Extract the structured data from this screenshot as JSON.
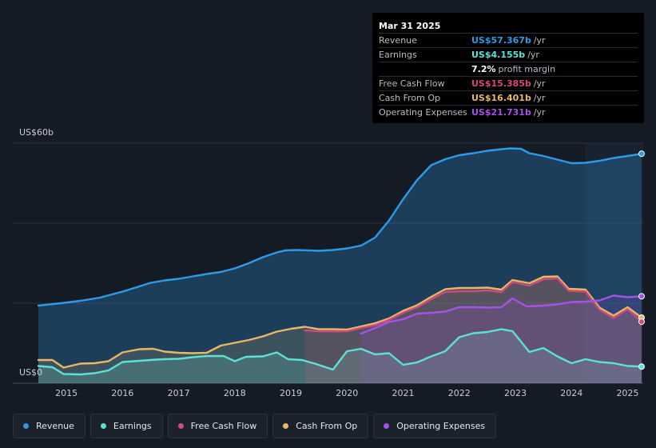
{
  "chart_data": {
    "type": "area",
    "title": "",
    "xlabel": "",
    "ylabel": "",
    "ylim": [
      0,
      60
    ],
    "xlim": [
      2014.5,
      2025.25
    ],
    "y_tick_labels": {
      "top": "US$60b",
      "bottom": "US$0"
    },
    "x_ticks": [
      2015,
      2016,
      2017,
      2018,
      2019,
      2020,
      2021,
      2022,
      2023,
      2024,
      2025
    ],
    "forecast_start": 2024.25,
    "series": [
      {
        "name": "Revenue",
        "color": "#2d9be8",
        "points": [
          [
            2014.5,
            19.4
          ],
          [
            2014.9,
            20.0
          ],
          [
            2015.25,
            20.6
          ],
          [
            2015.6,
            21.4
          ],
          [
            2016.0,
            22.9
          ],
          [
            2016.3,
            24.2
          ],
          [
            2016.5,
            25.1
          ],
          [
            2016.75,
            25.7
          ],
          [
            2017.0,
            26.1
          ],
          [
            2017.25,
            26.7
          ],
          [
            2017.5,
            27.3
          ],
          [
            2017.75,
            27.8
          ],
          [
            2018.0,
            28.7
          ],
          [
            2018.25,
            30.0
          ],
          [
            2018.5,
            31.5
          ],
          [
            2018.75,
            32.7
          ],
          [
            2018.9,
            33.2
          ],
          [
            2019.1,
            33.3
          ],
          [
            2019.5,
            33.1
          ],
          [
            2019.75,
            33.3
          ],
          [
            2020.0,
            33.7
          ],
          [
            2020.25,
            34.4
          ],
          [
            2020.5,
            36.4
          ],
          [
            2020.75,
            40.7
          ],
          [
            2021.0,
            46.0
          ],
          [
            2021.25,
            50.8
          ],
          [
            2021.5,
            54.5
          ],
          [
            2021.75,
            56.0
          ],
          [
            2022.0,
            57.0
          ],
          [
            2022.25,
            57.5
          ],
          [
            2022.5,
            58.1
          ],
          [
            2022.75,
            58.5
          ],
          [
            2022.9,
            58.7
          ],
          [
            2023.1,
            58.6
          ],
          [
            2023.25,
            57.5
          ],
          [
            2023.5,
            56.8
          ],
          [
            2023.75,
            55.9
          ],
          [
            2024.0,
            55.0
          ],
          [
            2024.25,
            55.1
          ],
          [
            2024.5,
            55.6
          ],
          [
            2024.75,
            56.3
          ],
          [
            2025.0,
            56.8
          ],
          [
            2025.25,
            57.367
          ]
        ]
      },
      {
        "name": "Earnings",
        "color": "#5ce1d6",
        "points": [
          [
            2014.5,
            4.3
          ],
          [
            2014.75,
            4.0
          ],
          [
            2014.95,
            2.3
          ],
          [
            2015.25,
            2.2
          ],
          [
            2015.5,
            2.5
          ],
          [
            2015.75,
            3.2
          ],
          [
            2016.0,
            5.3
          ],
          [
            2016.3,
            5.6
          ],
          [
            2016.6,
            5.9
          ],
          [
            2016.75,
            6.0
          ],
          [
            2017.0,
            6.1
          ],
          [
            2017.25,
            6.5
          ],
          [
            2017.5,
            6.8
          ],
          [
            2017.8,
            6.8
          ],
          [
            2018.0,
            5.5
          ],
          [
            2018.2,
            6.6
          ],
          [
            2018.5,
            6.7
          ],
          [
            2018.75,
            7.7
          ],
          [
            2018.95,
            6.0
          ],
          [
            2019.2,
            5.8
          ],
          [
            2019.45,
            4.8
          ],
          [
            2019.75,
            3.4
          ],
          [
            2020.0,
            8.0
          ],
          [
            2020.25,
            8.6
          ],
          [
            2020.5,
            7.2
          ],
          [
            2020.75,
            7.5
          ],
          [
            2021.0,
            4.6
          ],
          [
            2021.25,
            5.2
          ],
          [
            2021.5,
            6.7
          ],
          [
            2021.75,
            8.0
          ],
          [
            2022.0,
            11.5
          ],
          [
            2022.25,
            12.5
          ],
          [
            2022.5,
            12.8
          ],
          [
            2022.75,
            13.5
          ],
          [
            2022.95,
            13.0
          ],
          [
            2023.25,
            7.8
          ],
          [
            2023.5,
            8.8
          ],
          [
            2023.75,
            6.7
          ],
          [
            2024.0,
            5.0
          ],
          [
            2024.25,
            6.0
          ],
          [
            2024.5,
            5.3
          ],
          [
            2024.75,
            5.0
          ],
          [
            2025.0,
            4.3
          ],
          [
            2025.25,
            4.155
          ]
        ]
      },
      {
        "name": "Free Cash Flow",
        "color": "#d04a7c",
        "points": [
          [
            2019.25,
            13.2
          ],
          [
            2019.5,
            13.0
          ],
          [
            2019.75,
            13.0
          ],
          [
            2020.0,
            13.0
          ],
          [
            2020.25,
            13.8
          ],
          [
            2020.5,
            14.5
          ],
          [
            2020.75,
            15.8
          ],
          [
            2021.0,
            17.6
          ],
          [
            2021.25,
            19.0
          ],
          [
            2021.5,
            21.0
          ],
          [
            2021.75,
            22.8
          ],
          [
            2022.0,
            23.0
          ],
          [
            2022.25,
            23.0
          ],
          [
            2022.5,
            23.2
          ],
          [
            2022.75,
            22.8
          ],
          [
            2022.95,
            25.3
          ],
          [
            2023.25,
            24.4
          ],
          [
            2023.5,
            26.0
          ],
          [
            2023.75,
            26.2
          ],
          [
            2023.95,
            23.1
          ],
          [
            2024.25,
            22.9
          ],
          [
            2024.5,
            18.4
          ],
          [
            2024.75,
            16.3
          ],
          [
            2025.0,
            18.5
          ],
          [
            2025.25,
            15.385
          ]
        ]
      },
      {
        "name": "Cash From Op",
        "color": "#e8b866",
        "points": [
          [
            2014.5,
            5.8
          ],
          [
            2014.75,
            5.8
          ],
          [
            2014.95,
            3.9
          ],
          [
            2015.25,
            4.9
          ],
          [
            2015.5,
            5.0
          ],
          [
            2015.75,
            5.5
          ],
          [
            2016.0,
            7.7
          ],
          [
            2016.3,
            8.5
          ],
          [
            2016.55,
            8.6
          ],
          [
            2016.75,
            7.9
          ],
          [
            2017.0,
            7.6
          ],
          [
            2017.25,
            7.5
          ],
          [
            2017.5,
            7.6
          ],
          [
            2017.75,
            9.4
          ],
          [
            2018.0,
            10.1
          ],
          [
            2018.25,
            10.8
          ],
          [
            2018.5,
            11.7
          ],
          [
            2018.75,
            12.9
          ],
          [
            2019.0,
            13.6
          ],
          [
            2019.25,
            14.1
          ],
          [
            2019.5,
            13.5
          ],
          [
            2019.75,
            13.5
          ],
          [
            2020.0,
            13.4
          ],
          [
            2020.25,
            14.2
          ],
          [
            2020.5,
            15.0
          ],
          [
            2020.75,
            16.2
          ],
          [
            2021.0,
            18.1
          ],
          [
            2021.25,
            19.5
          ],
          [
            2021.5,
            21.6
          ],
          [
            2021.75,
            23.5
          ],
          [
            2022.0,
            23.8
          ],
          [
            2022.25,
            23.8
          ],
          [
            2022.5,
            23.9
          ],
          [
            2022.75,
            23.4
          ],
          [
            2022.95,
            25.8
          ],
          [
            2023.25,
            25.0
          ],
          [
            2023.5,
            26.6
          ],
          [
            2023.75,
            26.7
          ],
          [
            2023.95,
            23.6
          ],
          [
            2024.25,
            23.4
          ],
          [
            2024.5,
            18.9
          ],
          [
            2024.75,
            16.9
          ],
          [
            2025.0,
            19.0
          ],
          [
            2025.25,
            16.401
          ]
        ]
      },
      {
        "name": "Operating Expenses",
        "color": "#a452e8",
        "points": [
          [
            2020.25,
            12.4
          ],
          [
            2020.5,
            13.8
          ],
          [
            2020.75,
            15.3
          ],
          [
            2021.0,
            16.0
          ],
          [
            2021.25,
            17.4
          ],
          [
            2021.5,
            17.6
          ],
          [
            2021.75,
            17.9
          ],
          [
            2022.0,
            19.0
          ],
          [
            2022.25,
            19.0
          ],
          [
            2022.5,
            18.9
          ],
          [
            2022.75,
            19.0
          ],
          [
            2022.95,
            21.2
          ],
          [
            2023.2,
            19.2
          ],
          [
            2023.5,
            19.4
          ],
          [
            2023.75,
            19.7
          ],
          [
            2024.0,
            20.3
          ],
          [
            2024.25,
            20.4
          ],
          [
            2024.5,
            20.7
          ],
          [
            2024.75,
            21.9
          ],
          [
            2025.0,
            21.5
          ],
          [
            2025.25,
            21.731
          ]
        ]
      }
    ]
  },
  "tooltip": {
    "date": "Mar 31 2025",
    "rows": [
      {
        "label": "Revenue",
        "value": "US$57.367b",
        "unit": "/yr",
        "color": "#2d9be8"
      },
      {
        "label": "Earnings",
        "value": "US$4.155b",
        "unit": "/yr",
        "color": "#5ce1d6"
      },
      {
        "label": "",
        "value": "7.2%",
        "unit": "profit margin",
        "color": "#ffffff"
      },
      {
        "label": "Free Cash Flow",
        "value": "US$15.385b",
        "unit": "/yr",
        "color": "#d04a7c"
      },
      {
        "label": "Cash From Op",
        "value": "US$16.401b",
        "unit": "/yr",
        "color": "#e8b866"
      },
      {
        "label": "Operating Expenses",
        "value": "US$21.731b",
        "unit": "/yr",
        "color": "#a452e8"
      }
    ]
  },
  "legend": [
    {
      "label": "Revenue",
      "color": "#2d9be8"
    },
    {
      "label": "Earnings",
      "color": "#5ce1d6"
    },
    {
      "label": "Free Cash Flow",
      "color": "#d04a7c"
    },
    {
      "label": "Cash From Op",
      "color": "#e8b866"
    },
    {
      "label": "Operating Expenses",
      "color": "#a452e8"
    }
  ]
}
